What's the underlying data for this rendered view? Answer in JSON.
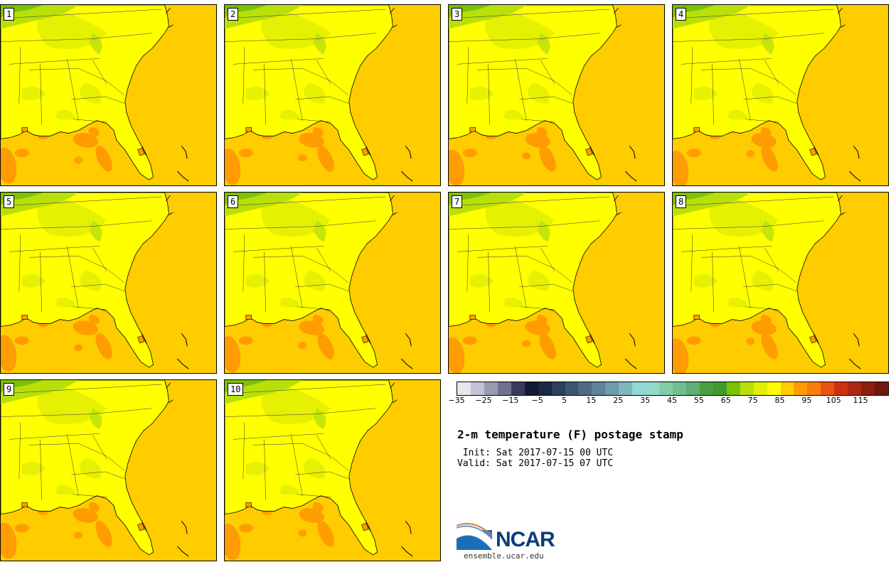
{
  "panels": [
    "1",
    "2",
    "3",
    "4",
    "5",
    "6",
    "7",
    "8",
    "9",
    "10"
  ],
  "colorbar": {
    "colors": [
      "#e6e6ef",
      "#c2c2d6",
      "#9999b3",
      "#707090",
      "#3a3a5c",
      "#141a33",
      "#1c2844",
      "#2c3f5c",
      "#3d5570",
      "#4e6a84",
      "#5e8298",
      "#6f9bab",
      "#80b6bf",
      "#93d6d3",
      "#8fdcc8",
      "#7fcfa6",
      "#6ebf8d",
      "#5eaf73",
      "#4a9f3e",
      "#3f9a2c",
      "#7cc008",
      "#b8e007",
      "#e2ee02",
      "#ffff00",
      "#ffcc00",
      "#ff9c00",
      "#fa7e0e",
      "#e85410",
      "#cc3310",
      "#b02712",
      "#8e1e12",
      "#6e1810"
    ],
    "tick_labels": [
      "−35",
      "−25",
      "−15",
      "−5",
      "5",
      "15",
      "25",
      "35",
      "45",
      "55",
      "65",
      "75",
      "85",
      "95",
      "105",
      "115"
    ]
  },
  "title": "2-m temperature (F) postage stamp",
  "init_line": " Init: Sat 2017-07-15 00 UTC",
  "valid_line": "Valid: Sat 2017-07-15 07 UTC",
  "logo": {
    "name": "NCAR",
    "url": "ensemble.ucar.edu"
  },
  "colors": {
    "ocean": "#ffcc00",
    "land_75_85": "#ffff00",
    "land_70_75": "#e2ee02",
    "land_65_70": "#b8e007",
    "land_60_65": "#7cc008",
    "warm_85_90": "#ff9c00",
    "logo_blue": "#0b3d7a"
  }
}
